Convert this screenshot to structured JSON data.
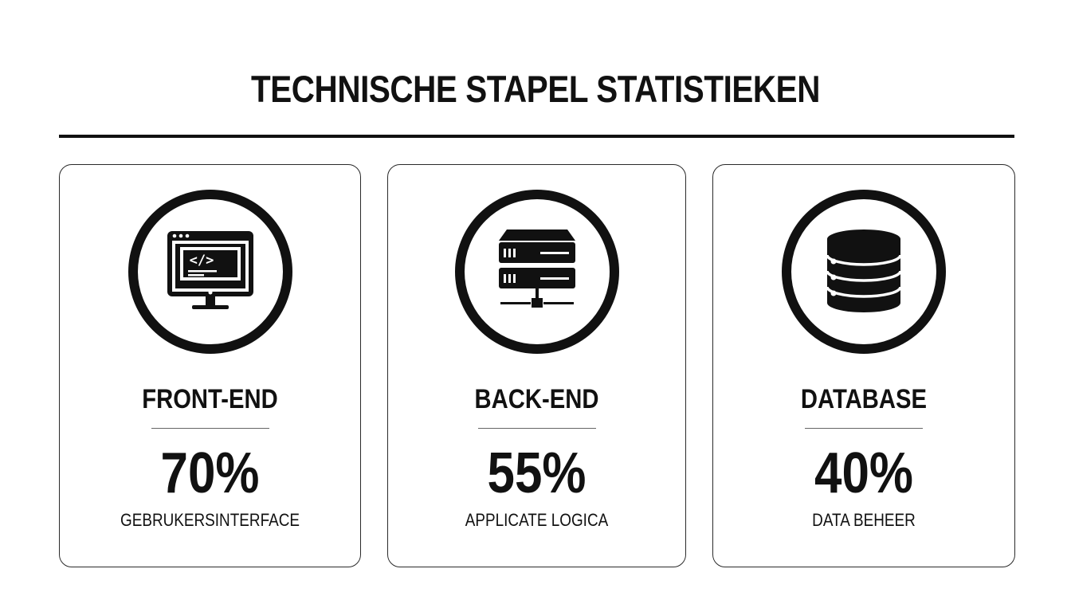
{
  "page": {
    "title": "TECHNISCHE STAPEL STATISTIEKEN"
  },
  "cards": [
    {
      "icon": "code-monitor-icon",
      "label": "FRONT-END",
      "value": "70%",
      "caption": "GEBRUKERSINTERFACE"
    },
    {
      "icon": "server-rack-icon",
      "label": "BACK-END",
      "value": "55%",
      "caption": "APPLICATE LOGICA"
    },
    {
      "icon": "database-icon",
      "label": "DATABASE",
      "value": "40%",
      "caption": "DATA BEHEER"
    }
  ],
  "colors": {
    "ink": "#111111",
    "background": "#ffffff",
    "card_border": "#2a2a2a"
  }
}
